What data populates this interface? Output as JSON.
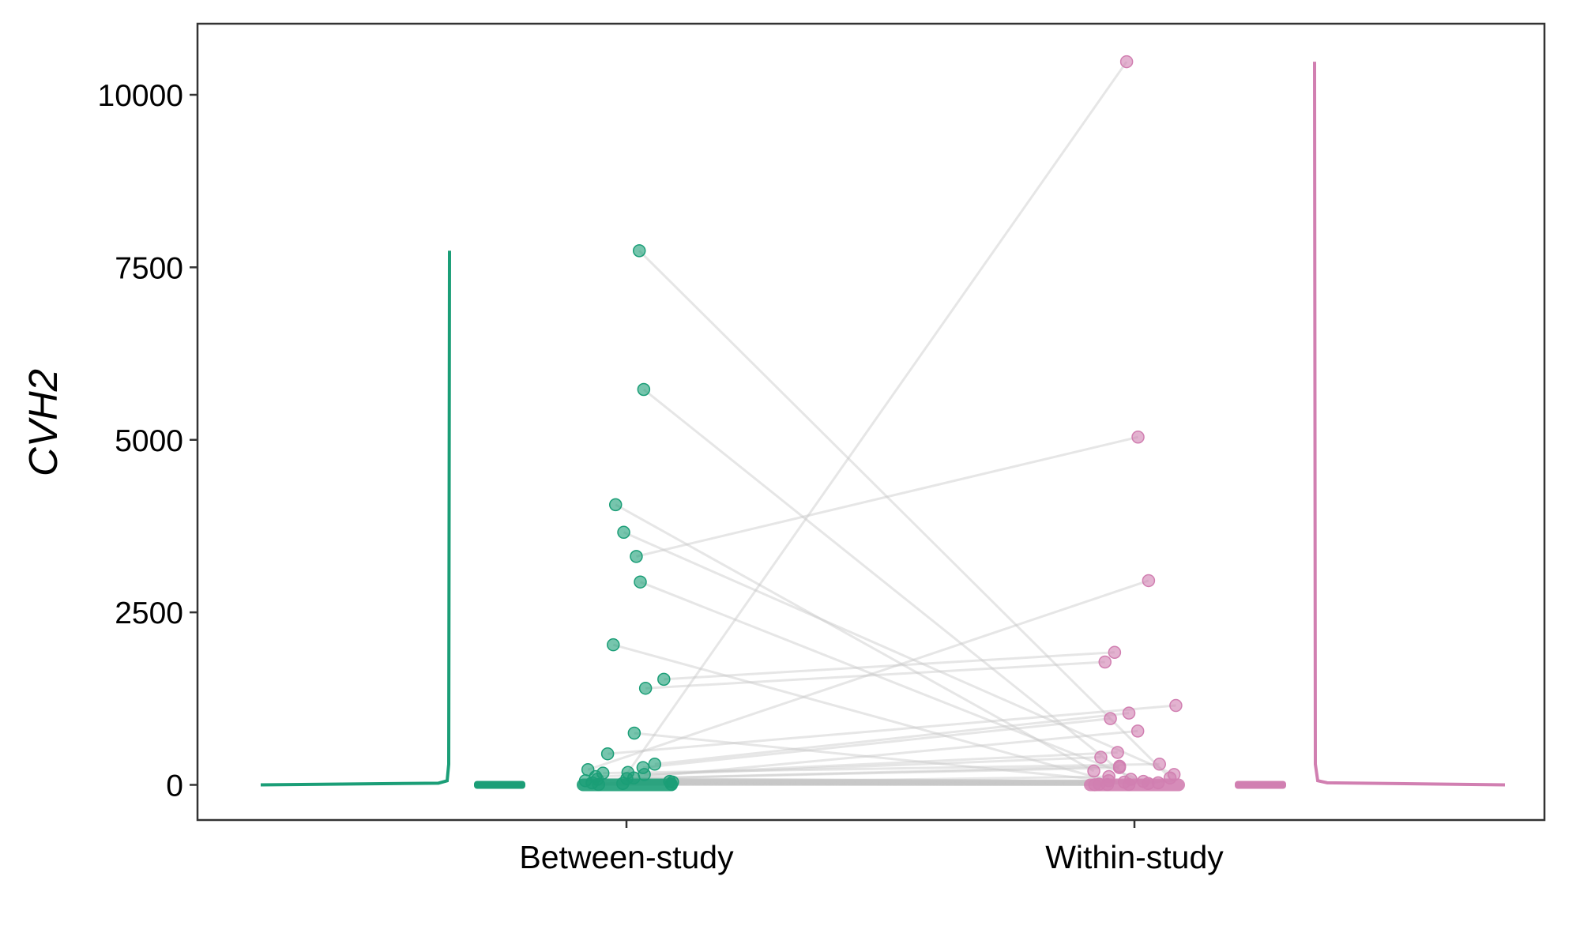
{
  "chart_data": {
    "type": "scatter",
    "title": "",
    "xlabel": "",
    "ylabel": "CVH2",
    "categories": [
      "Between-study",
      "Within-study"
    ],
    "ylim": [
      -500,
      10900
    ],
    "yticks": [
      0,
      2500,
      5000,
      7500,
      10000
    ],
    "ytick_labels": [
      "0",
      "2500",
      "5000",
      "7500",
      "10000"
    ],
    "grid": false,
    "colors": {
      "between": "#1b9e77",
      "within": "#d17fb1",
      "lines": "#c8c8c8",
      "axis": "#333333"
    },
    "series": [
      {
        "category": "Between-study",
        "values": [
          7740,
          5730,
          4060,
          3660,
          3310,
          2940,
          2030,
          1530,
          1400,
          750,
          450,
          300,
          250,
          220,
          180,
          170,
          150,
          120,
          100,
          90,
          80,
          60,
          50,
          40,
          30,
          20,
          10,
          5
        ]
      },
      {
        "category": "Within-study",
        "values": [
          10480,
          5040,
          2960,
          1920,
          1780,
          1150,
          1040,
          960,
          780,
          470,
          400,
          300,
          270,
          250,
          200,
          150,
          120,
          100,
          80,
          60,
          50,
          40,
          30,
          20,
          10,
          5,
          5,
          2
        ]
      }
    ],
    "pairs": [
      [
        7740,
        100
      ],
      [
        5730,
        80
      ],
      [
        4060,
        200
      ],
      [
        3660,
        150
      ],
      [
        3310,
        5040
      ],
      [
        2940,
        50
      ],
      [
        2030,
        60
      ],
      [
        1530,
        1920
      ],
      [
        1400,
        1780
      ],
      [
        750,
        40
      ],
      [
        450,
        1150
      ],
      [
        300,
        1040
      ],
      [
        250,
        960
      ],
      [
        220,
        2960
      ],
      [
        180,
        10480
      ],
      [
        170,
        300
      ],
      [
        150,
        470
      ],
      [
        120,
        400
      ],
      [
        100,
        780
      ],
      [
        90,
        270
      ],
      [
        80,
        250
      ],
      [
        60,
        30
      ],
      [
        50,
        20
      ],
      [
        40,
        10
      ],
      [
        30,
        5
      ],
      [
        20,
        120
      ],
      [
        10,
        5
      ],
      [
        5,
        2
      ]
    ],
    "density_peaks": [
      7740,
      10480
    ]
  }
}
